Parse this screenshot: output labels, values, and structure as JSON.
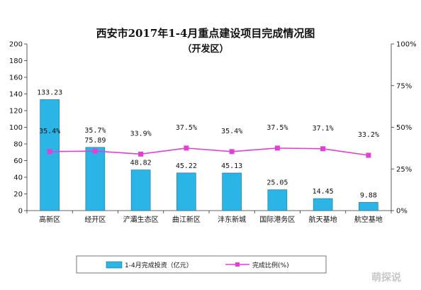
{
  "chart_data": {
    "type": "bar",
    "title": "西安市2017年1-4月重点建设项目完成情况图",
    "subtitle": "（开发区）",
    "categories": [
      "高新区",
      "经开区",
      "浐灞生态区",
      "曲江新区",
      "沣东新城",
      "国际港务区",
      "航天基地",
      "航空基地"
    ],
    "series": [
      {
        "name": "1-4月完成投资（亿元）",
        "type": "bar",
        "axis": "left",
        "values": [
          133.23,
          75.89,
          48.82,
          45.22,
          45.13,
          25.05,
          14.45,
          9.88
        ],
        "labels": [
          "133.23",
          "75.89",
          "48.82",
          "45.22",
          "45.13",
          "25.05",
          "14.45",
          "9.88"
        ],
        "color": "#2bb5e6"
      },
      {
        "name": "完成比例(%)",
        "type": "line",
        "axis": "right",
        "values": [
          35.4,
          35.7,
          33.9,
          37.5,
          35.4,
          37.5,
          37.1,
          33.2
        ],
        "labels": [
          "35.4%",
          "35.7%",
          "33.9%",
          "37.5%",
          "35.4%",
          "37.5%",
          "37.1%",
          "33.2%"
        ],
        "color": "#e040d6"
      }
    ],
    "y_left": {
      "min": 0,
      "max": 200,
      "step": 20,
      "ticks": [
        "0",
        "20",
        "40",
        "60",
        "80",
        "100",
        "120",
        "140",
        "160",
        "180",
        "200"
      ]
    },
    "y_right": {
      "min": 0,
      "max": 100,
      "step": 25,
      "ticks": [
        "0%",
        "25%",
        "50%",
        "75%",
        "100%"
      ]
    },
    "grid": false,
    "legend_position": "bottom"
  },
  "watermark": "萌探说"
}
